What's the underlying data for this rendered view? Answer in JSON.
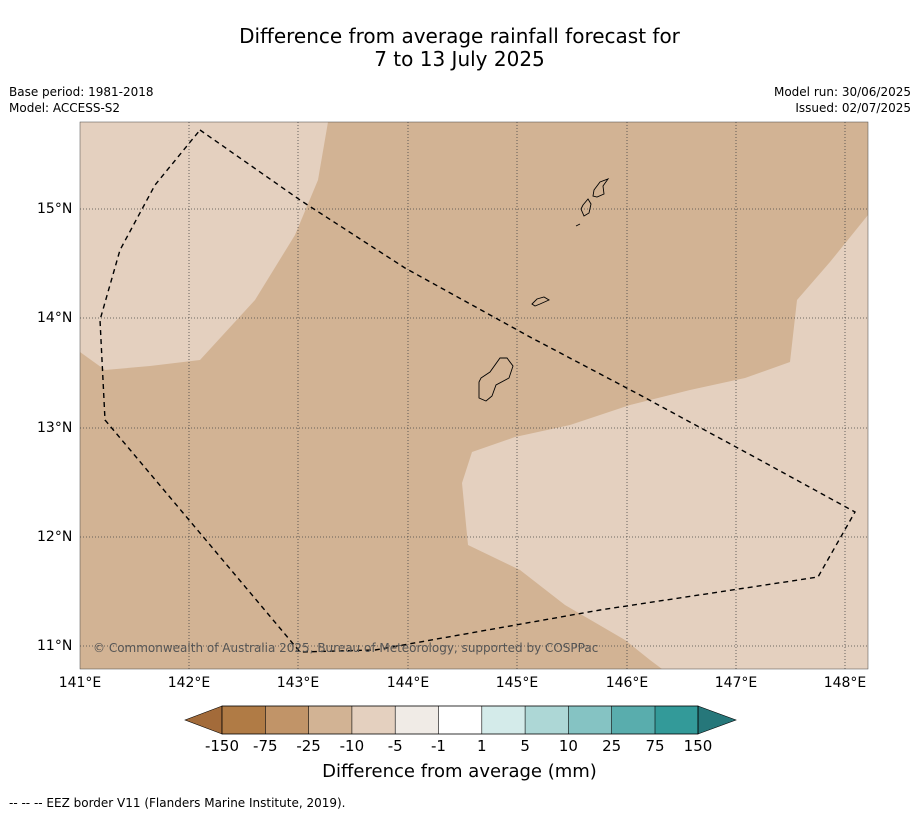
{
  "title_line1": "Difference from average rainfall forecast for",
  "title_line2": "7 to 13 July 2025",
  "meta_left": {
    "base_period": "Base period: 1981-2018",
    "model": "Model: ACCESS-S2"
  },
  "meta_right": {
    "model_run": "Model run: 30/06/2025",
    "issued": "Issued: 02/07/2025"
  },
  "map": {
    "lon_labels": [
      "141°E",
      "142°E",
      "143°E",
      "144°E",
      "145°E",
      "146°E",
      "147°E",
      "148°E"
    ],
    "lat_labels": [
      "15°N",
      "14°N",
      "13°N",
      "12°N",
      "11°N"
    ],
    "copyright": "© Commonwealth of Australia 2025, Bureau of Meteorology, supported by COSPPac",
    "colors": {
      "band_minus25_to_minus10": "#d2b394",
      "band_minus10_to_minus5": "#e4d0bf",
      "gridline": "#444444",
      "eez_line": "#000000"
    }
  },
  "colorbar": {
    "ticks": [
      "-150",
      "-75",
      "-25",
      "-10",
      "-5",
      "-1",
      "1",
      "5",
      "10",
      "25",
      "75",
      "150"
    ],
    "colors": [
      "#a36b3a",
      "#b07b45",
      "#c19468",
      "#d2b394",
      "#e4d0bf",
      "#f0ebe6",
      "#ffffff",
      "#d4ebea",
      "#add7d6",
      "#85c3c3",
      "#59adad",
      "#339a99",
      "#26777a"
    ],
    "label": "Difference from average (mm)"
  },
  "footnote": "--  --  -- EEZ border V11 (Flanders Marine Institute, 2019)."
}
